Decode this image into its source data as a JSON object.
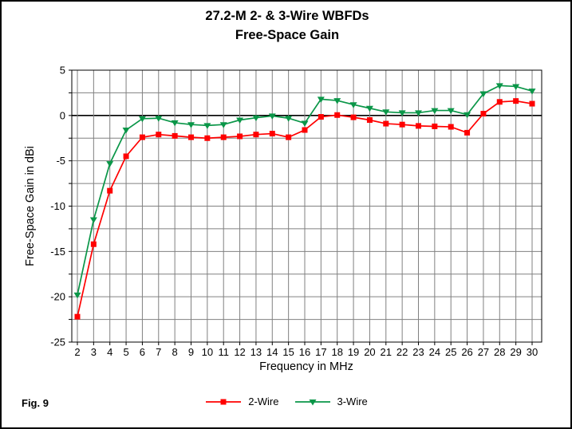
{
  "page": {
    "fig_label": "Fig. 9"
  },
  "chart_data": {
    "type": "line",
    "title_line1": "27.2-M 2- & 3-Wire WBFDs",
    "title_line2": "Free-Space Gain",
    "xlabel": "Frequency in MHz",
    "ylabel": "Free-Space Gain in dBi",
    "xlim": [
      2,
      30
    ],
    "ylim": [
      -25,
      5
    ],
    "y_major_ticks": [
      5,
      0,
      -5,
      -10,
      -15,
      -20,
      -25
    ],
    "y_minor_step": 2.5,
    "grid": {
      "color": "#808080",
      "zero_line_color": "#000000",
      "border_color": "#000000"
    },
    "legend_position": "bottom-center",
    "x": [
      2,
      3,
      4,
      5,
      6,
      7,
      8,
      9,
      10,
      11,
      12,
      13,
      14,
      15,
      16,
      17,
      18,
      19,
      20,
      21,
      22,
      23,
      24,
      25,
      26,
      27,
      28,
      29,
      30
    ],
    "series": [
      {
        "name": "2-Wire",
        "color": "#ff0000",
        "marker": "square",
        "values": [
          -22.2,
          -14.2,
          -8.3,
          -4.5,
          -2.4,
          -2.1,
          -2.25,
          -2.4,
          -2.5,
          -2.4,
          -2.3,
          -2.1,
          -2.0,
          -2.4,
          -1.6,
          -0.15,
          0.05,
          -0.2,
          -0.5,
          -0.9,
          -1.0,
          -1.15,
          -1.2,
          -1.25,
          -1.9,
          0.2,
          1.5,
          1.6,
          1.3
        ]
      },
      {
        "name": "3-Wire",
        "color": "#0a9648",
        "marker": "triangle-down",
        "values": [
          -19.8,
          -11.5,
          -5.3,
          -1.6,
          -0.35,
          -0.3,
          -0.8,
          -1.0,
          -1.1,
          -1.0,
          -0.5,
          -0.25,
          -0.05,
          -0.3,
          -0.85,
          1.8,
          1.65,
          1.2,
          0.8,
          0.4,
          0.3,
          0.3,
          0.55,
          0.55,
          0.1,
          2.4,
          3.3,
          3.2,
          2.7
        ]
      }
    ]
  }
}
